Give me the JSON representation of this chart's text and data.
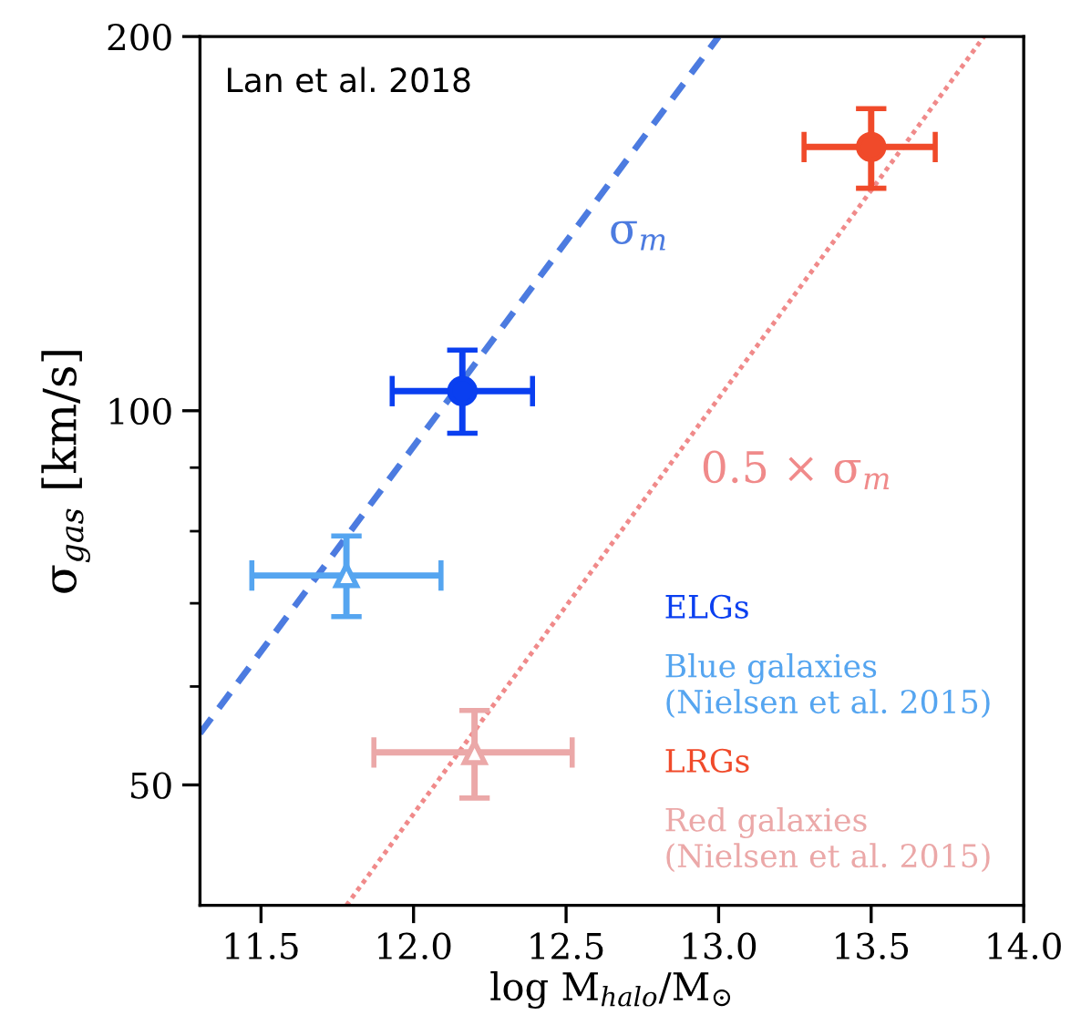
{
  "chart_data": {
    "type": "scatter",
    "xlabel": "log M$_{halo}$/M$_{⊙}$",
    "ylabel": "σ$_{gas}$ [km/s]",
    "xlim": [
      11.3,
      14.0
    ],
    "xticks": [
      11.5,
      {
        "value": 12,
        "label": "12.0"
      },
      12.5,
      {
        "value": 13,
        "label": "13.0"
      },
      13.5,
      {
        "value": 14,
        "label": "14.0"
      }
    ],
    "ylim": [
      40,
      200
    ],
    "log": "y",
    "yticks": [
      50,
      100,
      200,
      {
        "value": 60,
        "label": null
      },
      {
        "value": 70,
        "label": null
      },
      {
        "value": 80,
        "label": null
      },
      {
        "value": 90,
        "label": null
      }
    ],
    "grid": false,
    "legend": "bottom right",
    "series": [
      {
        "name": "ELGs",
        "marker": "circle",
        "color": "#0a3ff0",
        "x": [
          12.16
        ],
        "values": [
          103.7
        ],
        "errors": [
          [
            95.9,
            111.9
          ]
        ],
        "xerrors": [
          [
            11.93,
            12.39
          ]
        ]
      },
      {
        "name": "Blue galaxies\n(Nielsen et al. 2015)",
        "marker": "triangle",
        "color": "#55a5f0",
        "x": [
          11.78
        ],
        "values": [
          73.7
        ],
        "errors": [
          [
            68.3,
            79.3
          ]
        ],
        "xerrors": [
          [
            11.47,
            12.09
          ]
        ]
      },
      {
        "name": "LRGs",
        "marker": "circle",
        "color": "#f04a2a",
        "x": [
          13.5
        ],
        "values": [
          163
        ],
        "errors": [
          [
            151,
            175
          ]
        ],
        "xerrors": [
          [
            13.28,
            13.71
          ]
        ]
      },
      {
        "name": "Red galaxies\n(Nielsen et al. 2015)",
        "marker": "triangle",
        "color": "#eba8a8",
        "x": [
          12.2
        ],
        "values": [
          53.1
        ],
        "errors": [
          [
            48.8,
            57.4
          ]
        ],
        "xerrors": [
          [
            11.87,
            12.52
          ]
        ]
      },
      {
        "type": "line",
        "line_style": "dashed",
        "color": "#4c7be0",
        "x": [
          11.3,
          13.0
        ],
        "values": [
          55,
          200
        ]
      },
      {
        "type": "line",
        "line_style": "dotted",
        "color": "#f08a8a",
        "x": [
          11.78,
          13.87
        ],
        "values": [
          40,
          200
        ]
      }
    ],
    "annotations": [
      "Lan et al. 2018",
      "σ$_{m}$",
      "0.5 × σ$_{m}$"
    ]
  }
}
